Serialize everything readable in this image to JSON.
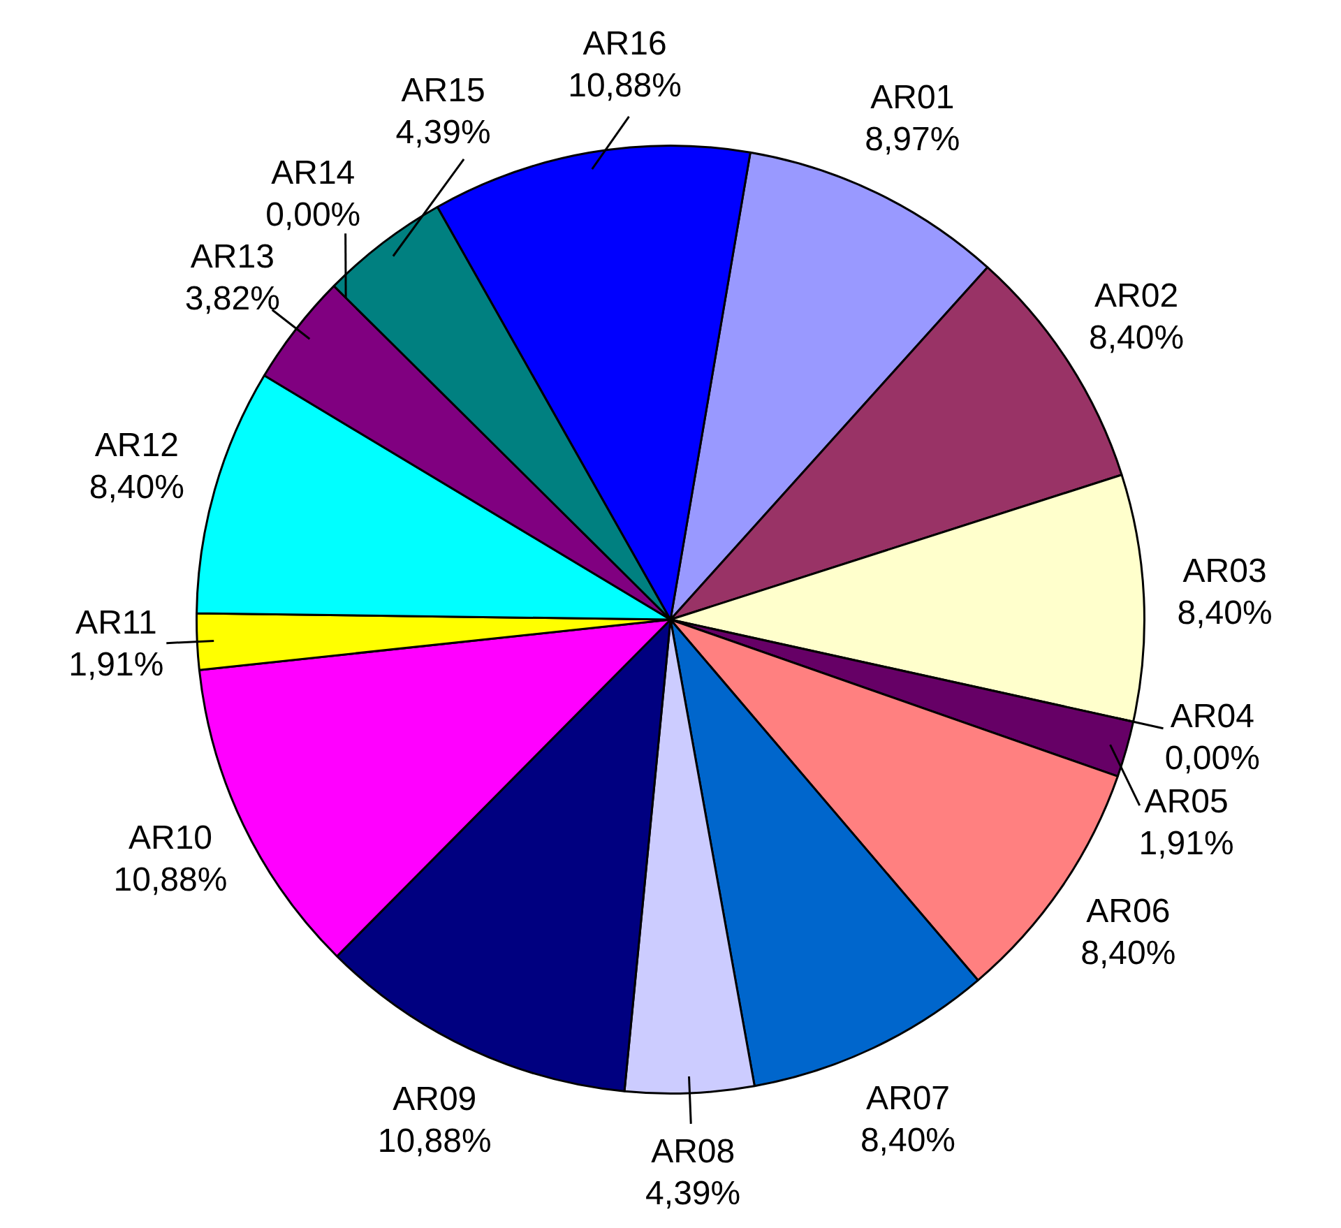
{
  "chart_data": {
    "type": "pie",
    "categories": [
      "AR01",
      "AR02",
      "AR03",
      "AR04",
      "AR05",
      "AR06",
      "AR07",
      "AR08",
      "AR09",
      "AR10",
      "AR11",
      "AR12",
      "AR13",
      "AR14",
      "AR15",
      "AR16"
    ],
    "values": [
      8.97,
      8.4,
      8.4,
      0.0,
      1.91,
      8.4,
      8.4,
      4.39,
      10.88,
      10.88,
      1.91,
      8.4,
      3.82,
      0.0,
      4.39,
      10.88
    ],
    "value_labels": [
      "8,97%",
      "8,40%",
      "8,40%",
      "0,00%",
      "1,91%",
      "8,40%",
      "8,40%",
      "4,39%",
      "10,88%",
      "10,88%",
      "1,91%",
      "8,40%",
      "3,82%",
      "0,00%",
      "4,39%",
      "10,88%"
    ],
    "colors": [
      "#9999ff",
      "#993366",
      "#ffffcc",
      "#ccffff",
      "#660066",
      "#ff8080",
      "#0066cc",
      "#ccccff",
      "#000080",
      "#ff00ff",
      "#ffff00",
      "#00ffff",
      "#800080",
      "#800000",
      "#008080",
      "#0000ff"
    ],
    "data_labels": false
  }
}
